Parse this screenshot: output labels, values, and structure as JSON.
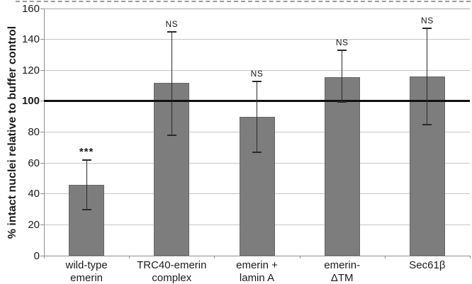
{
  "figure": {
    "description_visible_text_only": true
  },
  "chart_data": {
    "type": "bar",
    "title": "",
    "xlabel": "",
    "ylabel": "% intact nuclei relative to buffer control",
    "ylim": [
      0,
      160
    ],
    "ytick_step": 20,
    "reference_line": 100,
    "grid": true,
    "legend": "none",
    "bar_color": "#7d7d7d",
    "bar_border_color": "#666666",
    "categories": [
      "wild-type\nemerin",
      "TRC40-emerin\ncomplex",
      "emerin +\nlamin A",
      "emerin-\nΔTM",
      "Sec61β"
    ],
    "values": [
      46,
      112,
      90,
      115.5,
      116
    ],
    "error_minus": [
      16,
      34,
      23,
      16,
      31
    ],
    "error_plus": [
      16,
      33,
      23,
      17.5,
      31
    ],
    "significance_labels": [
      "***",
      "NS",
      "NS",
      "NS",
      "NS"
    ],
    "y_tick_labels": [
      "0",
      "20",
      "40",
      "60",
      "80",
      "100",
      "120",
      "140",
      "160"
    ]
  }
}
